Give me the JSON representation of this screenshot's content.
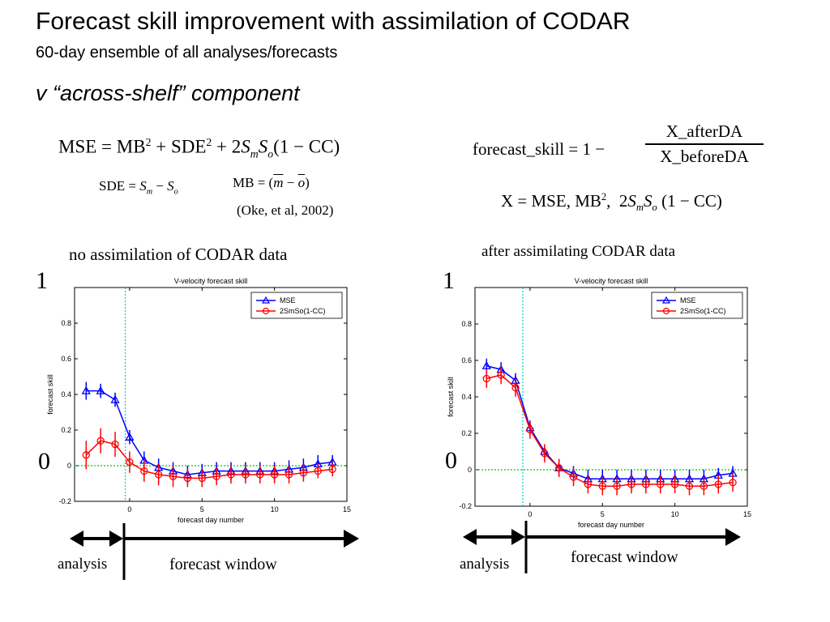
{
  "header": {
    "title": "Forecast skill improvement with assimilation of CODAR",
    "subtitle": "60-day ensemble of all analyses/forecasts",
    "component": "v “across-shelf” component"
  },
  "equations": {
    "mse_lhs": "MSE = MB",
    "mse_mid": " + SDE",
    "mse_plus": " + 2",
    "mse_tail": "(1 − CC)",
    "sde_lhs": "SDE = ",
    "mb_eq": "MB = (",
    "reference": "(Oke, et al, 2002)",
    "fs_lhs": "forecast_skill = 1 −",
    "fs_num": "X_afterDA",
    "fs_den": "X_beforeDA",
    "x_def": "X = MSE, MB",
    "x_def_tail": "(1 − CC)"
  },
  "captions": {
    "left": "no assimilation of CODAR data",
    "right": "after assimilating CODAR data"
  },
  "big_ticks": {
    "one": "1",
    "zero": "0"
  },
  "arrows": {
    "analysis_label": "analysis",
    "forecast_label": "forecast window"
  },
  "colors": {
    "mse": "#0000ff",
    "cc": "#ff0000",
    "zero_line": "#00cc00",
    "analysis_line": "#00cccc"
  },
  "chart_data": [
    {
      "type": "line",
      "title": "V-velocity forecast skill",
      "xlabel": "forecast day number",
      "ylabel": "forecast skill",
      "xlim": [
        -3.8,
        15
      ],
      "ylim": [
        -0.2,
        1.0
      ],
      "xticks": [
        0,
        5,
        10,
        15
      ],
      "yticks": [
        -0.2,
        0,
        0.2,
        0.4,
        0.6,
        0.8
      ],
      "grid": false,
      "legend": "top-right",
      "analysis_line_x": -0.3,
      "x": [
        -3,
        -2,
        -1,
        0,
        1,
        2,
        3,
        4,
        5,
        6,
        7,
        8,
        9,
        10,
        11,
        12,
        13,
        14
      ],
      "series": [
        {
          "name": "MSE",
          "marker": "triangle",
          "values": [
            0.42,
            0.42,
            0.37,
            0.16,
            0.03,
            -0.01,
            -0.03,
            -0.05,
            -0.04,
            -0.03,
            -0.03,
            -0.03,
            -0.03,
            -0.03,
            -0.02,
            -0.01,
            0.01,
            0.02
          ],
          "errors": [
            0.05,
            0.04,
            0.04,
            0.04,
            0.05,
            0.05,
            0.05,
            0.05,
            0.05,
            0.05,
            0.05,
            0.05,
            0.05,
            0.05,
            0.05,
            0.05,
            0.05,
            0.04
          ]
        },
        {
          "name": "2SmSo(1-CC)",
          "marker": "circle",
          "values": [
            0.06,
            0.14,
            0.12,
            0.02,
            -0.03,
            -0.05,
            -0.06,
            -0.07,
            -0.07,
            -0.06,
            -0.05,
            -0.05,
            -0.05,
            -0.05,
            -0.05,
            -0.04,
            -0.03,
            -0.02
          ],
          "errors": [
            0.08,
            0.07,
            0.07,
            0.06,
            0.06,
            0.06,
            0.06,
            0.05,
            0.05,
            0.05,
            0.05,
            0.05,
            0.05,
            0.05,
            0.05,
            0.05,
            0.04,
            0.04
          ]
        }
      ]
    },
    {
      "type": "line",
      "title": "V-velocity forecast skill",
      "xlabel": "forecast day number",
      "ylabel": "forecast skill",
      "xlim": [
        -3.8,
        15
      ],
      "ylim": [
        -0.2,
        1.0
      ],
      "xticks": [
        0,
        5,
        10,
        15
      ],
      "yticks": [
        -0.2,
        0,
        0.2,
        0.4,
        0.6,
        0.8
      ],
      "grid": false,
      "legend": "top-right",
      "analysis_line_x": -0.5,
      "x": [
        -3,
        -2,
        -1,
        0,
        1,
        2,
        3,
        4,
        5,
        6,
        7,
        8,
        9,
        10,
        11,
        12,
        13,
        14
      ],
      "series": [
        {
          "name": "MSE",
          "marker": "triangle",
          "values": [
            0.57,
            0.55,
            0.49,
            0.23,
            0.1,
            0.01,
            -0.02,
            -0.05,
            -0.05,
            -0.05,
            -0.05,
            -0.05,
            -0.05,
            -0.05,
            -0.05,
            -0.05,
            -0.03,
            -0.02
          ],
          "errors": [
            0.04,
            0.04,
            0.04,
            0.04,
            0.04,
            0.04,
            0.04,
            0.05,
            0.05,
            0.05,
            0.05,
            0.05,
            0.05,
            0.05,
            0.05,
            0.05,
            0.04,
            0.04
          ]
        },
        {
          "name": "2SmSo(1-CC)",
          "marker": "circle",
          "values": [
            0.5,
            0.52,
            0.45,
            0.22,
            0.09,
            0.01,
            -0.04,
            -0.08,
            -0.09,
            -0.09,
            -0.08,
            -0.08,
            -0.08,
            -0.08,
            -0.09,
            -0.09,
            -0.08,
            -0.07
          ],
          "errors": [
            0.05,
            0.05,
            0.05,
            0.05,
            0.05,
            0.05,
            0.05,
            0.05,
            0.05,
            0.05,
            0.05,
            0.05,
            0.05,
            0.05,
            0.05,
            0.05,
            0.05,
            0.05
          ]
        }
      ]
    }
  ]
}
